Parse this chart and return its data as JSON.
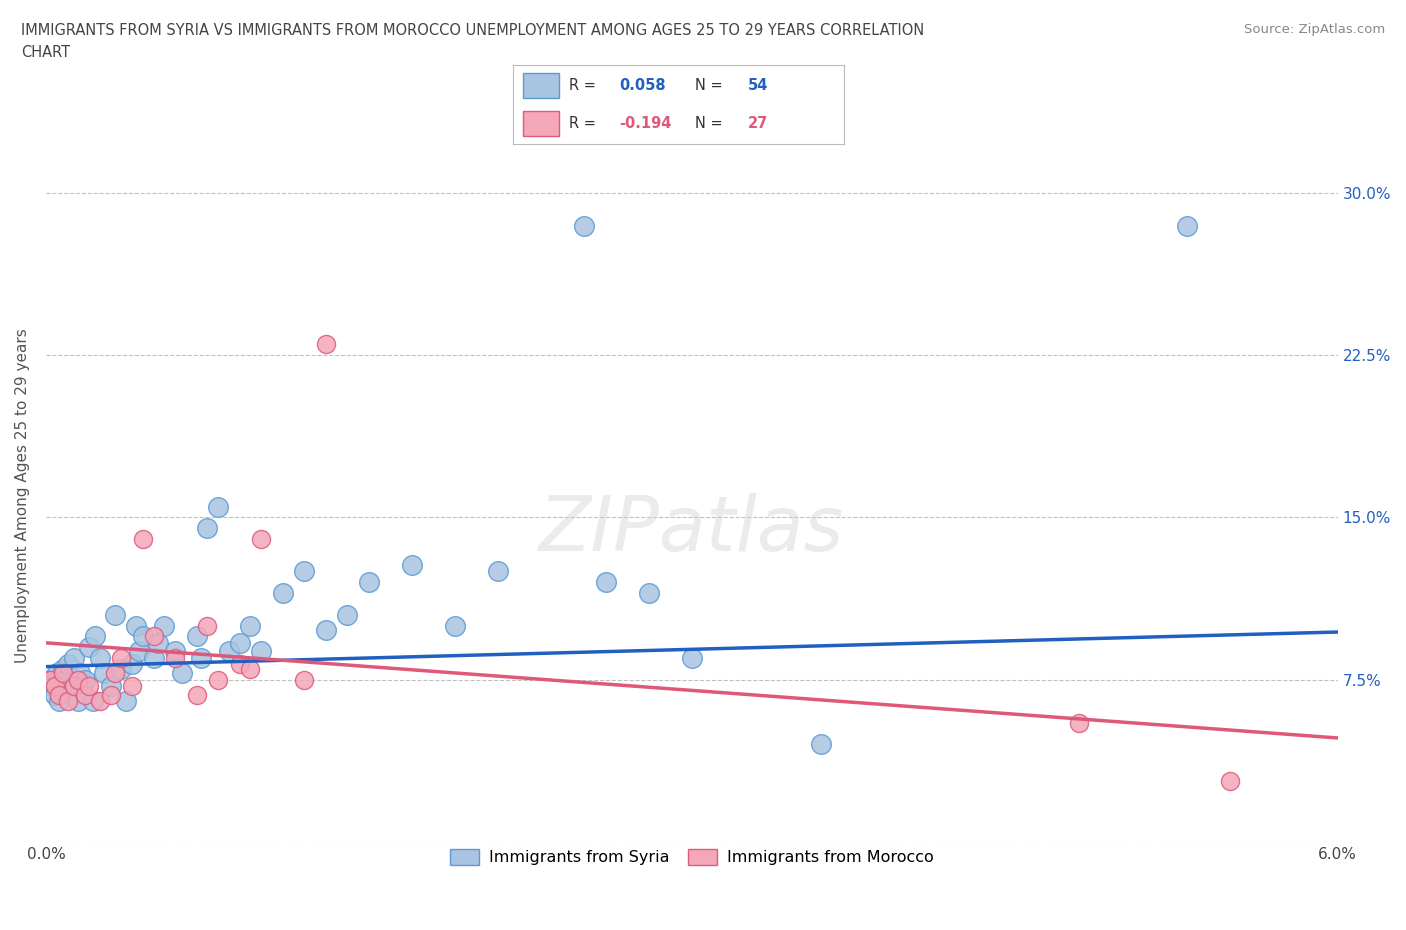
{
  "title": "IMMIGRANTS FROM SYRIA VS IMMIGRANTS FROM MOROCCO UNEMPLOYMENT AMONG AGES 25 TO 29 YEARS CORRELATION\nCHART",
  "source": "Source: ZipAtlas.com",
  "ylabel": "Unemployment Among Ages 25 to 29 years",
  "xlim": [
    0.0,
    0.06
  ],
  "ylim": [
    0.0,
    0.32
  ],
  "xticks": [
    0.0,
    0.01,
    0.02,
    0.03,
    0.04,
    0.05,
    0.06
  ],
  "xticklabels": [
    "0.0%",
    "",
    "",
    "",
    "",
    "",
    "6.0%"
  ],
  "yticks": [
    0.0,
    0.075,
    0.15,
    0.225,
    0.3
  ],
  "yticklabels": [
    "",
    "7.5%",
    "15.0%",
    "22.5%",
    "30.0%"
  ],
  "syria_color": "#a8c4e0",
  "syria_edge": "#5b9bd5",
  "morocco_color": "#f4a7b9",
  "morocco_edge": "#e05a7a",
  "syria_line_color": "#2060c0",
  "morocco_line_color": "#e05878",
  "syria_R": "0.058",
  "syria_N": "54",
  "morocco_R": "-0.194",
  "morocco_N": "27",
  "legend_label_syria": "Immigrants from Syria",
  "legend_label_morocco": "Immigrants from Morocco",
  "watermark": "ZIPatlas",
  "syria_x": [
    0.0002,
    0.0003,
    0.0004,
    0.0005,
    0.0006,
    0.0007,
    0.0008,
    0.0009,
    0.001,
    0.0012,
    0.0013,
    0.0015,
    0.0016,
    0.0018,
    0.002,
    0.0022,
    0.0023,
    0.0025,
    0.0027,
    0.003,
    0.0032,
    0.0035,
    0.0037,
    0.004,
    0.0042,
    0.0043,
    0.0045,
    0.005,
    0.0052,
    0.0055,
    0.006,
    0.0063,
    0.007,
    0.0072,
    0.0075,
    0.008,
    0.0085,
    0.009,
    0.0095,
    0.01,
    0.011,
    0.012,
    0.013,
    0.014,
    0.015,
    0.017,
    0.019,
    0.021,
    0.025,
    0.026,
    0.028,
    0.03,
    0.036,
    0.053
  ],
  "syria_y": [
    0.075,
    0.072,
    0.068,
    0.078,
    0.065,
    0.07,
    0.08,
    0.075,
    0.082,
    0.072,
    0.085,
    0.065,
    0.078,
    0.075,
    0.09,
    0.065,
    0.095,
    0.085,
    0.078,
    0.072,
    0.105,
    0.08,
    0.065,
    0.082,
    0.1,
    0.088,
    0.095,
    0.085,
    0.092,
    0.1,
    0.088,
    0.078,
    0.095,
    0.085,
    0.145,
    0.155,
    0.088,
    0.092,
    0.1,
    0.088,
    0.115,
    0.125,
    0.098,
    0.105,
    0.12,
    0.128,
    0.1,
    0.125,
    0.285,
    0.12,
    0.115,
    0.085,
    0.045,
    0.285
  ],
  "morocco_x": [
    0.0002,
    0.0004,
    0.0006,
    0.0008,
    0.001,
    0.0013,
    0.0015,
    0.0018,
    0.002,
    0.0025,
    0.003,
    0.0032,
    0.0035,
    0.004,
    0.0045,
    0.005,
    0.006,
    0.007,
    0.0075,
    0.008,
    0.009,
    0.0095,
    0.01,
    0.012,
    0.013,
    0.048,
    0.055
  ],
  "morocco_y": [
    0.075,
    0.072,
    0.068,
    0.078,
    0.065,
    0.072,
    0.075,
    0.068,
    0.072,
    0.065,
    0.068,
    0.078,
    0.085,
    0.072,
    0.14,
    0.095,
    0.085,
    0.068,
    0.1,
    0.075,
    0.082,
    0.08,
    0.14,
    0.075,
    0.23,
    0.055,
    0.028
  ],
  "syria_line_y0": 0.081,
  "syria_line_y1": 0.097,
  "morocco_line_y0": 0.092,
  "morocco_line_y1": 0.048
}
